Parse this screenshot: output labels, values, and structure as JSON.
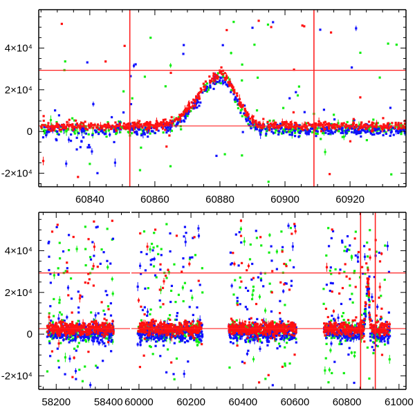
{
  "chart_data": {
    "type": "scatter",
    "title": "",
    "colors": {
      "green": "#11ee11",
      "blue": "#1010ff",
      "red": "#ff1010",
      "reference_line": "#ff2020",
      "axis": "#000000"
    },
    "panels": [
      {
        "name": "zoom",
        "xlabel": "",
        "ylabel": "",
        "xlim": [
          60824.3,
          60937.2
        ],
        "ylim": [
          -26500,
          58400
        ],
        "xticks": [
          {
            "v": 60840,
            "label": "60840"
          },
          {
            "v": 60860,
            "label": "60860"
          },
          {
            "v": 60880,
            "label": "60880"
          },
          {
            "v": 60900,
            "label": "60900"
          },
          {
            "v": 60920,
            "label": "60920"
          }
        ],
        "x_minor_step": 5,
        "yticks": [
          {
            "v": -20000,
            "label": "-2×10⁴"
          },
          {
            "v": 0,
            "label": "0"
          },
          {
            "v": 20000,
            "label": "2×10⁴"
          },
          {
            "v": 40000,
            "label": "4×10⁴"
          }
        ],
        "y_minor_step": 5000,
        "hlines": [
          29333,
          2667
        ],
        "vlines": [
          60852.3,
          60908.9
        ],
        "seasons": [
          [
            60825,
            60937
          ]
        ],
        "event": {
          "t_peak": 60880.5,
          "amplitude": 26000,
          "rise_sigma_days": 7,
          "decline_sigma_days": 4.5
        }
      },
      {
        "name": "full",
        "xlabel": "",
        "ylabel": "",
        "x_segments": [
          [
            58133,
            58483
          ],
          [
            59971,
            61027
          ]
        ],
        "ylim": [
          -26500,
          58400
        ],
        "xticks": [
          {
            "v": 58200,
            "label": "58200"
          },
          {
            "v": 58400,
            "label": "58400"
          },
          {
            "v": 60000,
            "label": "60000"
          },
          {
            "v": 60200,
            "label": "60200"
          },
          {
            "v": 60400,
            "label": "60400"
          },
          {
            "v": 60600,
            "label": "60600"
          },
          {
            "v": 60800,
            "label": "60800"
          },
          {
            "v": 61000,
            "label": "61000"
          }
        ],
        "x_minor_step": 50,
        "yticks": [
          {
            "v": -20000,
            "label": "-2×10⁴"
          },
          {
            "v": 0,
            "label": "0"
          },
          {
            "v": 20000,
            "label": "2×10⁴"
          },
          {
            "v": 40000,
            "label": "4×10⁴"
          }
        ],
        "y_minor_step": 5000,
        "hlines": [
          29333,
          2667
        ],
        "vlines": [
          60852.3,
          60908.9
        ],
        "seasons": [
          [
            58165,
            58420
          ],
          [
            59995,
            60245
          ],
          [
            60345,
            60605
          ],
          [
            60710,
            60965
          ]
        ],
        "event": {
          "t_peak": 60880.5,
          "amplitude": 26000,
          "rise_sigma_days": 7,
          "decline_sigma_days": 4.5
        }
      }
    ],
    "series": [
      {
        "name": "green",
        "color": "#11ee11",
        "baseline": 1200,
        "scatter": 1500,
        "outlier_fraction": 0.08,
        "n_zoom": 420,
        "n_full": 900
      },
      {
        "name": "blue",
        "color": "#1010ff",
        "baseline": 600,
        "scatter": 1500,
        "outlier_fraction": 0.07,
        "n_zoom": 480,
        "n_full": 1100
      },
      {
        "name": "red",
        "color": "#ff1010",
        "baseline": 2700,
        "scatter": 1000,
        "outlier_fraction": 0.04,
        "n_zoom": 620,
        "n_full": 1400
      }
    ]
  }
}
